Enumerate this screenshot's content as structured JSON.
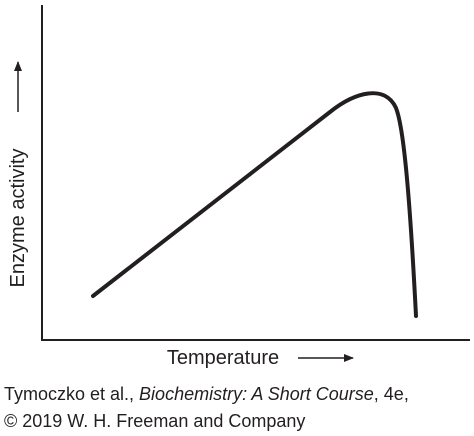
{
  "chart_data": {
    "type": "line",
    "x_label": "Temperature",
    "y_label": "Enzyme activity",
    "source": [
      "Tymoczko et al., ",
      "Biochemistry: A Short Course",
      ", 4e,",
      "© 2019 W. H. Freeman and Company"
    ]
  }
}
